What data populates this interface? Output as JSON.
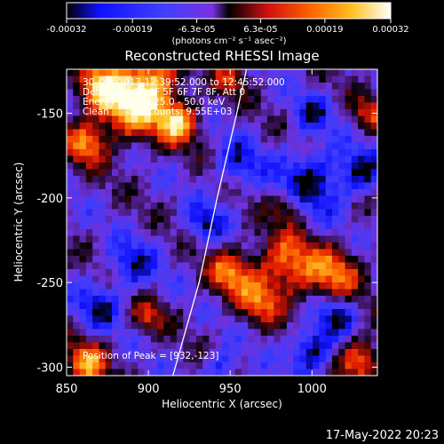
{
  "chart_data": {
    "type": "heatmap",
    "title": "Reconstructed RHESSI Image",
    "xlabel": "Heliocentric X (arcsec)",
    "ylabel": "Heliocentric Y (arcsec)",
    "xlim": [
      850,
      1040
    ],
    "ylim": [
      -305,
      -124
    ],
    "x_ticks": [
      "850",
      "900",
      "950",
      "1000"
    ],
    "x_tick_values": [
      850,
      900,
      950,
      1000
    ],
    "y_ticks": [
      "-150",
      "-200",
      "-250",
      "-300"
    ],
    "y_tick_values": [
      -150,
      -200,
      -250,
      -300
    ],
    "colorbar": {
      "tick_labels": [
        "-0.00032",
        "-0.00019",
        "-6.3e-05",
        "6.3e-05",
        "0.00019",
        "0.00032"
      ],
      "tick_values": [
        -0.00032,
        -0.00019,
        -6.3e-05,
        6.3e-05,
        0.00019,
        0.00032
      ],
      "range": [
        -0.00032,
        0.00032
      ],
      "units": "(photons cm⁻² s⁻¹ asec⁻²)",
      "colormap": [
        "#000000",
        "#1010ff",
        "#7a30e0",
        "#ff1a00",
        "#ff8800",
        "#ffe030",
        "#ffffff"
      ]
    },
    "annotations": {
      "line1": "30-Oct-2013 12:39:52.000 to 12:45:52.000",
      "line2": "Detectors: 3F 4F 5F 6F 7F 8F, Att 0",
      "line3": "Energy Range: 25.0 - 50.0 keV",
      "line4": "Clean     Total counts: 9.55E+03",
      "peak": "Position of Peak = [932,-123]"
    },
    "limb_curve": {
      "color": "#ffffff",
      "points": [
        [
          915,
          -305
        ],
        [
          931,
          -250
        ],
        [
          942,
          -200
        ],
        [
          954,
          -150
        ],
        [
          960,
          -124
        ]
      ]
    },
    "peak_position": [
      932,
      -123
    ],
    "grid": false
  },
  "footer": {
    "date": "17-May-2022 20:23"
  }
}
